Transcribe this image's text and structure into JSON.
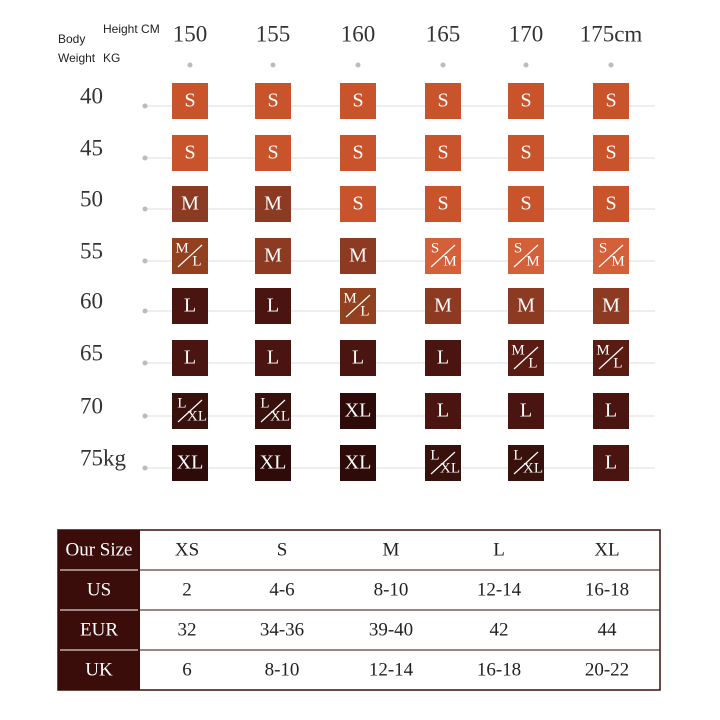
{
  "header": {
    "body": "Body",
    "weight": "Weight",
    "height": "Height CM",
    "kg": "KG"
  },
  "heights": [
    "150",
    "155",
    "160",
    "165",
    "170",
    "175cm"
  ],
  "weights": [
    "40",
    "45",
    "50",
    "55",
    "60",
    "65",
    "70",
    "75kg"
  ],
  "grid": [
    [
      {
        "label": "S",
        "color": "#c9532b"
      },
      {
        "label": "S",
        "color": "#c9532b"
      },
      {
        "label": "S",
        "color": "#c9532b"
      },
      {
        "label": "S",
        "color": "#c9532b"
      },
      {
        "label": "S",
        "color": "#c9532b"
      },
      {
        "label": "S",
        "color": "#c9532b"
      }
    ],
    [
      {
        "label": "S",
        "color": "#c9532b"
      },
      {
        "label": "S",
        "color": "#c9532b"
      },
      {
        "label": "S",
        "color": "#c9532b"
      },
      {
        "label": "S",
        "color": "#c9532b"
      },
      {
        "label": "S",
        "color": "#c9532b"
      },
      {
        "label": "S",
        "color": "#c9532b"
      }
    ],
    [
      {
        "label": "M",
        "color": "#8c3a22"
      },
      {
        "label": "M",
        "color": "#8c3a22"
      },
      {
        "label": "S",
        "color": "#c9532b"
      },
      {
        "label": "S",
        "color": "#c9532b"
      },
      {
        "label": "S",
        "color": "#c9532b"
      },
      {
        "label": "S",
        "color": "#c9532b"
      }
    ],
    [
      {
        "label": [
          "M",
          "L"
        ],
        "color": "#93401f"
      },
      {
        "label": "M",
        "color": "#8c3a22"
      },
      {
        "label": "M",
        "color": "#8c3a22"
      },
      {
        "label": [
          "S",
          "M"
        ],
        "color": "#d4603a"
      },
      {
        "label": [
          "S",
          "M"
        ],
        "color": "#d4603a"
      },
      {
        "label": [
          "S",
          "M"
        ],
        "color": "#d4603a"
      }
    ],
    [
      {
        "label": "L",
        "color": "#4a1510"
      },
      {
        "label": "L",
        "color": "#4a1510"
      },
      {
        "label": [
          "M",
          "L"
        ],
        "color": "#93401f"
      },
      {
        "label": "M",
        "color": "#8c3a22"
      },
      {
        "label": "M",
        "color": "#8c3a22"
      },
      {
        "label": "M",
        "color": "#8c3a22"
      }
    ],
    [
      {
        "label": "L",
        "color": "#4a1510"
      },
      {
        "label": "L",
        "color": "#4a1510"
      },
      {
        "label": "L",
        "color": "#4a1510"
      },
      {
        "label": "L",
        "color": "#4a1510"
      },
      {
        "label": [
          "M",
          "L"
        ],
        "color": "#5a1c12"
      },
      {
        "label": [
          "M",
          "L"
        ],
        "color": "#5a1c12"
      }
    ],
    [
      {
        "label": [
          "L",
          "XL"
        ],
        "color": "#38100c"
      },
      {
        "label": [
          "L",
          "XL"
        ],
        "color": "#38100c"
      },
      {
        "label": "XL",
        "color": "#2e0b08"
      },
      {
        "label": "L",
        "color": "#4a1510"
      },
      {
        "label": "L",
        "color": "#4a1510"
      },
      {
        "label": "L",
        "color": "#4a1510"
      }
    ],
    [
      {
        "label": "XL",
        "color": "#2e0b08"
      },
      {
        "label": "XL",
        "color": "#2e0b08"
      },
      {
        "label": "XL",
        "color": "#2e0b08"
      },
      {
        "label": [
          "L",
          "XL"
        ],
        "color": "#38100c"
      },
      {
        "label": [
          "L",
          "XL"
        ],
        "color": "#38100c"
      },
      {
        "label": "L",
        "color": "#4a1510"
      }
    ]
  ],
  "table": {
    "rows": [
      [
        "Our Size",
        "XS",
        "S",
        "M",
        "L",
        "XL"
      ],
      [
        "US",
        "2",
        "4-6",
        "8-10",
        "12-14",
        "16-18"
      ],
      [
        "EUR",
        "32",
        "34-36",
        "39-40",
        "42",
        "44"
      ],
      [
        "UK",
        "6",
        "8-10",
        "12-14",
        "16-18",
        "20-22"
      ]
    ]
  }
}
